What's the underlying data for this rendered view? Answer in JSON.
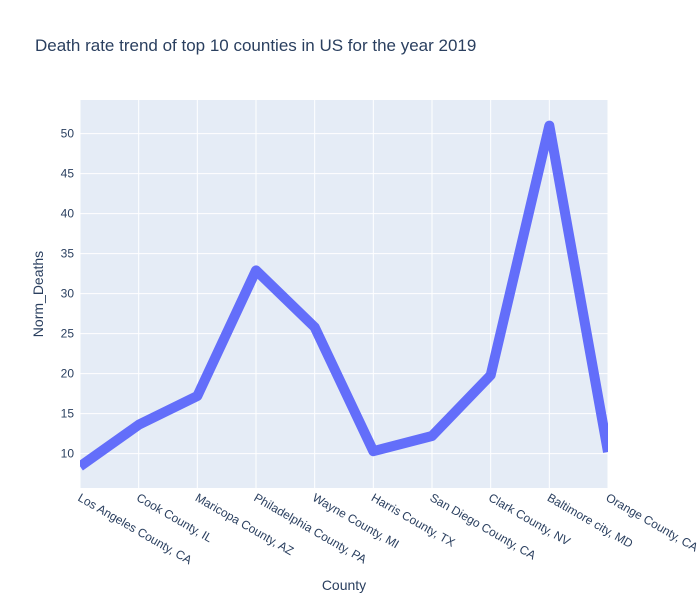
{
  "chart_data": {
    "type": "line",
    "title": "Death rate trend of top 10 counties in US for the year 2019",
    "xlabel": "County",
    "ylabel": "Norm_Deaths",
    "categories": [
      "Los Angeles County, CA",
      "Cook County, IL",
      "Maricopa County, AZ",
      "Philadelphia County, PA",
      "Wayne County, MI",
      "Harris County, TX",
      "San Diego County, CA",
      "Clark County, NV",
      "Baltimore city, MD",
      "Orange County, CA"
    ],
    "series": [
      {
        "values": [
          8.4,
          13.6,
          17.2,
          32.9,
          25.8,
          10.3,
          12.2,
          19.8,
          51.0,
          10.2
        ]
      }
    ],
    "ylim": [
      5.7,
      54.2
    ],
    "yticks": [
      10,
      15,
      20,
      25,
      30,
      35,
      40,
      45,
      50
    ],
    "grid": true,
    "line_color": "#636efa",
    "plot_bg": "#e5ecf6"
  }
}
